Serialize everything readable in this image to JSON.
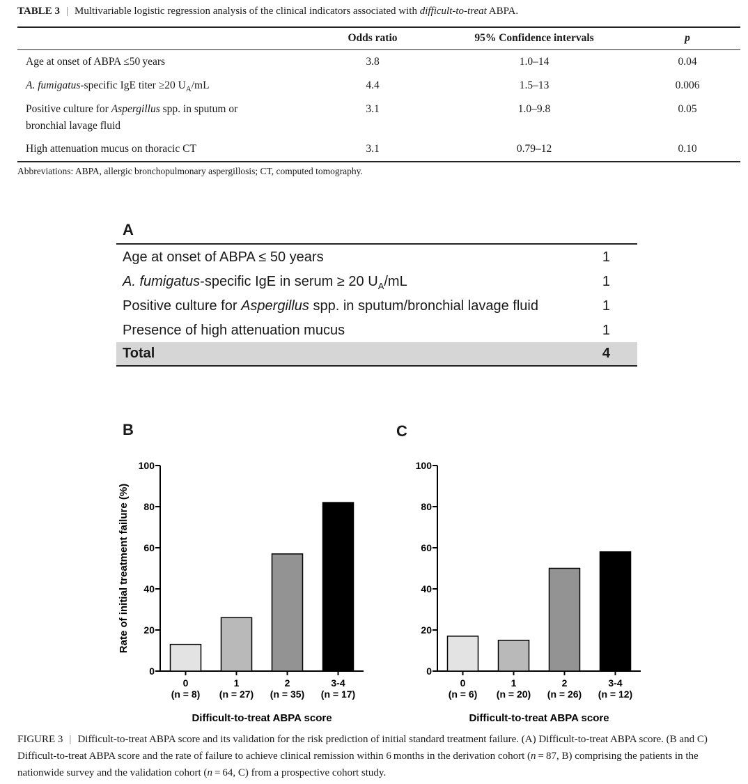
{
  "table3": {
    "label": "TABLE 3",
    "title_pre": "Multivariable logistic regression analysis of the clinical indicators associated with ",
    "title_em": "difficult-to-treat",
    "title_post": " ABPA.",
    "headers": {
      "odds": "Odds ratio",
      "ci": "95% Confidence intervals",
      "p": "p"
    },
    "rows": [
      {
        "label_pre": "Age at onset of ABPA ≤50 years",
        "label_em": "",
        "label_post": "",
        "label2": "",
        "odds": "3.8",
        "ci": "1.0–14",
        "p": "0.04"
      },
      {
        "label_pre": "",
        "label_em": "A. fumigatus",
        "label_post": "-specific IgE titer ≥20 U",
        "label_sub": "A",
        "label_tail": "/mL",
        "label2": "",
        "odds": "4.4",
        "ci": "1.5–13",
        "p": "0.006"
      },
      {
        "label_pre": "Positive culture for ",
        "label_em": "Aspergillus",
        "label_post": " spp. in sputum or",
        "label2": "bronchial lavage fluid",
        "odds": "3.1",
        "ci": "1.0–9.8",
        "p": "0.05"
      },
      {
        "label_pre": "High attenuation mucus on thoracic CT",
        "label_em": "",
        "label_post": "",
        "label2": "",
        "odds": "3.1",
        "ci": "0.79–12",
        "p": "0.10"
      }
    ],
    "footnote": "Abbreviations: ABPA, allergic bronchopulmonary aspergillosis; CT, computed tomography."
  },
  "panel_a": {
    "letter": "A",
    "rows": [
      {
        "pre": "Age at onset of ABPA ≤ 50 years",
        "em": "",
        "post": "",
        "sub": "",
        "tail": "",
        "points": "1"
      },
      {
        "pre": "",
        "em": "A. fumigatus",
        "post": "-specific IgE in serum ≥ 20 U",
        "sub": "A",
        "tail": "/mL",
        "points": "1"
      },
      {
        "pre": "Positive culture for ",
        "em": "Aspergillus",
        "post": " spp. in sputum/bronchial lavage fluid",
        "sub": "",
        "tail": "",
        "points": "1"
      },
      {
        "pre": "Presence of high attenuation mucus",
        "em": "",
        "post": "",
        "sub": "",
        "tail": "",
        "points": "1"
      }
    ],
    "total_label": "Total",
    "total_points": "4"
  },
  "chart_data": [
    {
      "panel": "B",
      "type": "bar",
      "categories": [
        "0",
        "1",
        "2",
        "3-4"
      ],
      "category_n": [
        "(n = 8)",
        "(n = 27)",
        "(n = 35)",
        "(n = 17)"
      ],
      "values": [
        13,
        26,
        57,
        82
      ],
      "bar_colors": [
        "#e3e3e3",
        "#b9b9b9",
        "#939393",
        "#000000"
      ],
      "ylim": [
        0,
        100
      ],
      "yticks": [
        0,
        20,
        40,
        60,
        80,
        100
      ],
      "xlabel": "Difficult-to-treat ABPA score",
      "ylabel": "Rate of initial treatment failure (%)"
    },
    {
      "panel": "C",
      "type": "bar",
      "categories": [
        "0",
        "1",
        "2",
        "3-4"
      ],
      "category_n": [
        "(n = 6)",
        "(n = 20)",
        "(n = 26)",
        "(n = 12)"
      ],
      "values": [
        17,
        15,
        50,
        58
      ],
      "bar_colors": [
        "#e3e3e3",
        "#b9b9b9",
        "#939393",
        "#000000"
      ],
      "ylim": [
        0,
        100
      ],
      "yticks": [
        0,
        20,
        40,
        60,
        80,
        100
      ],
      "xlabel": "Difficult-to-treat ABPA score",
      "ylabel": ""
    }
  ],
  "figure3": {
    "label": "FIGURE 3",
    "parts": [
      {
        "t": "Difficult-to-treat ABPA score and its validation for the risk prediction of initial standard treatment failure. (A) Difficult-to-treat ABPA score. (B and C) Difficult-to-treat ABPA score and the rate of failure to achieve clinical remission within 6 months in the derivation cohort (",
        "i": false
      },
      {
        "t": "n",
        "i": true
      },
      {
        "t": " = 87, B) comprising the patients in the nationwide survey and the validation cohort (",
        "i": false
      },
      {
        "t": "n",
        "i": true
      },
      {
        "t": " = 64, C) from a prospective cohort study.",
        "i": false
      }
    ]
  }
}
